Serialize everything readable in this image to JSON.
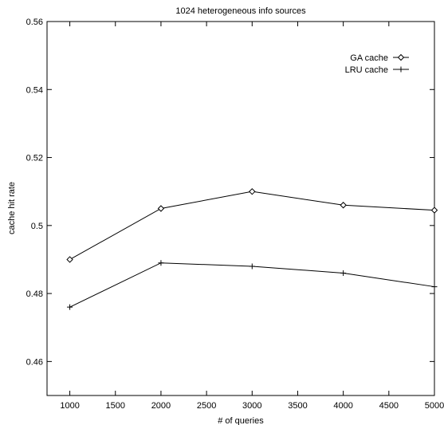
{
  "chart_data": {
    "type": "line",
    "title": "1024 heterogeneous info sources",
    "xlabel": "# of queries",
    "ylabel": "cache hit rate",
    "xlim": [
      750,
      5000
    ],
    "ylim": [
      0.45,
      0.56
    ],
    "xticks": [
      1000,
      1500,
      2000,
      2500,
      3000,
      3500,
      4000,
      4500,
      5000
    ],
    "yticks": [
      0.46,
      0.48,
      0.5,
      0.52,
      0.54,
      0.56
    ],
    "xtick_labels": [
      "1000",
      "1500",
      "2000",
      "2500",
      "3000",
      "3500",
      "4000",
      "4500",
      "5000"
    ],
    "ytick_labels": [
      "0.46",
      "0.48",
      "0.5",
      "0.52",
      "0.54",
      "0.56"
    ],
    "grid": false,
    "legend_position": "top-right",
    "x": [
      1000,
      2000,
      3000,
      4000,
      5000
    ],
    "series": [
      {
        "name": "GA cache",
        "marker": "diamond",
        "values": [
          0.49,
          0.505,
          0.51,
          0.506,
          0.5045
        ]
      },
      {
        "name": "LRU cache",
        "marker": "plus",
        "values": [
          0.476,
          0.489,
          0.488,
          0.486,
          0.482
        ]
      }
    ]
  }
}
